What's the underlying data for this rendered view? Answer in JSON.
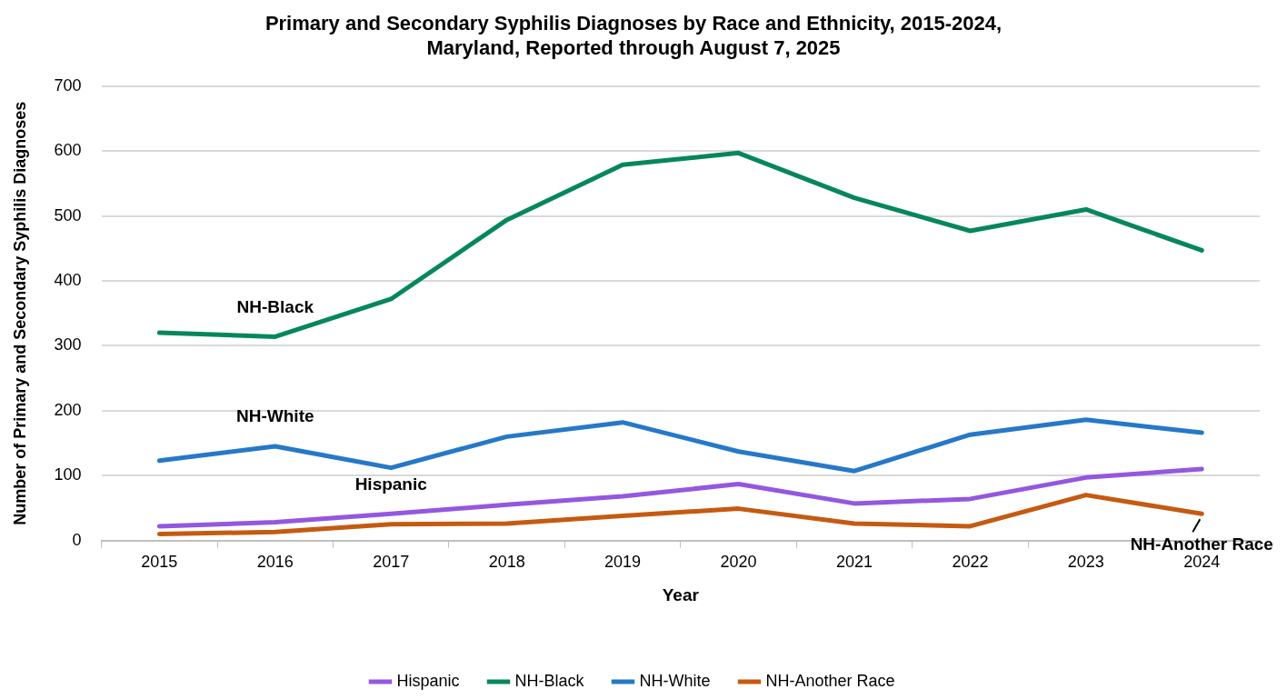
{
  "chart_data": {
    "type": "line",
    "title": "Primary and Secondary Syphilis Diagnoses by Race and Ethnicity, 2015-2024, Maryland, Reported through August 7, 2025",
    "xlabel": "Year",
    "ylabel": "Number of Primary and Secondary Syphilis Diagnoses",
    "categories": [
      "2015",
      "2016",
      "2017",
      "2018",
      "2019",
      "2020",
      "2021",
      "2022",
      "2023",
      "2024"
    ],
    "series": [
      {
        "name": "Hispanic",
        "color": "#9457e0",
        "values": [
          22,
          28,
          41,
          55,
          68,
          87,
          57,
          64,
          97,
          110
        ]
      },
      {
        "name": "NH-Black",
        "color": "#06875a",
        "values": [
          320,
          314,
          372,
          494,
          579,
          597,
          528,
          477,
          510,
          447
        ]
      },
      {
        "name": "NH-White",
        "color": "#2678c8",
        "values": [
          123,
          145,
          112,
          160,
          182,
          137,
          107,
          163,
          186,
          166
        ]
      },
      {
        "name": "NH-Another Race",
        "color": "#c55a11",
        "values": [
          10,
          13,
          25,
          26,
          38,
          49,
          26,
          22,
          70,
          41
        ]
      }
    ],
    "ylim": [
      0,
      700
    ],
    "yticks": [
      0,
      100,
      200,
      300,
      400,
      500,
      600,
      700
    ],
    "grid": "y",
    "legend": "bottom",
    "marker": "none",
    "line_style": "solid",
    "annotations": [
      {
        "text": "NH-Black",
        "x": "2016",
        "y": 314
      },
      {
        "text": "NH-White",
        "x": "2016",
        "y": 145
      },
      {
        "text": "Hispanic",
        "x": "2017",
        "y": 41
      },
      {
        "text": "NH-Another Race",
        "x": "2024",
        "y": 41
      }
    ]
  }
}
